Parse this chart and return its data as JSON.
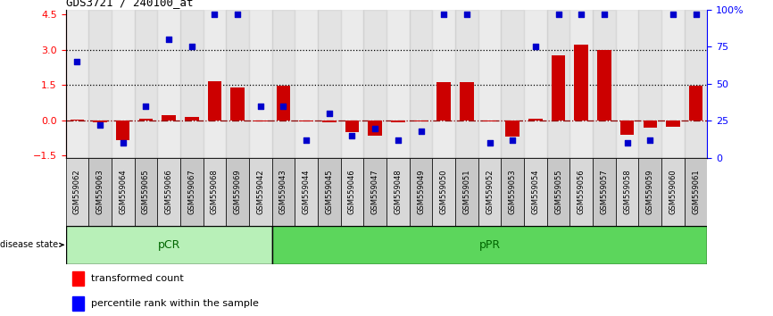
{
  "title": "GDS3721 / 240100_at",
  "samples": [
    "GSM559062",
    "GSM559063",
    "GSM559064",
    "GSM559065",
    "GSM559066",
    "GSM559067",
    "GSM559068",
    "GSM559069",
    "GSM559042",
    "GSM559043",
    "GSM559044",
    "GSM559045",
    "GSM559046",
    "GSM559047",
    "GSM559048",
    "GSM559049",
    "GSM559050",
    "GSM559051",
    "GSM559052",
    "GSM559053",
    "GSM559054",
    "GSM559055",
    "GSM559056",
    "GSM559057",
    "GSM559058",
    "GSM559059",
    "GSM559060",
    "GSM559061"
  ],
  "transformed_count": [
    0.02,
    -0.07,
    -0.85,
    0.08,
    0.22,
    0.15,
    1.65,
    1.4,
    -0.03,
    1.45,
    -0.05,
    -0.07,
    -0.5,
    -0.65,
    -0.08,
    -0.05,
    1.6,
    1.62,
    -0.05,
    -0.7,
    0.08,
    2.75,
    3.2,
    3.0,
    -0.6,
    -0.3,
    -0.27,
    1.45
  ],
  "percentile_rank": [
    65,
    22,
    10,
    35,
    80,
    75,
    97,
    97,
    35,
    35,
    12,
    30,
    15,
    20,
    12,
    18,
    97,
    97,
    10,
    12,
    75,
    97,
    97,
    97,
    10,
    12,
    97,
    97
  ],
  "pcr_count": 9,
  "group_labels": [
    "pCR",
    "pPR"
  ],
  "group_colors": [
    "#b8f0b8",
    "#5cd65c"
  ],
  "bar_color": "#cc0000",
  "dot_color": "#0000cc",
  "bg_color_odd": "#d8d8d8",
  "bg_color_even": "#c8c8c8",
  "ylim_left": [
    -1.6,
    4.7
  ],
  "ylim_right": [
    0,
    100
  ],
  "yticks_left": [
    -1.5,
    0.0,
    1.5,
    3.0,
    4.5
  ],
  "yticks_right": [
    0,
    25,
    50,
    75,
    100
  ],
  "hline_values": [
    1.5,
    3.0
  ],
  "legend_items": [
    "transformed count",
    "percentile rank within the sample"
  ]
}
